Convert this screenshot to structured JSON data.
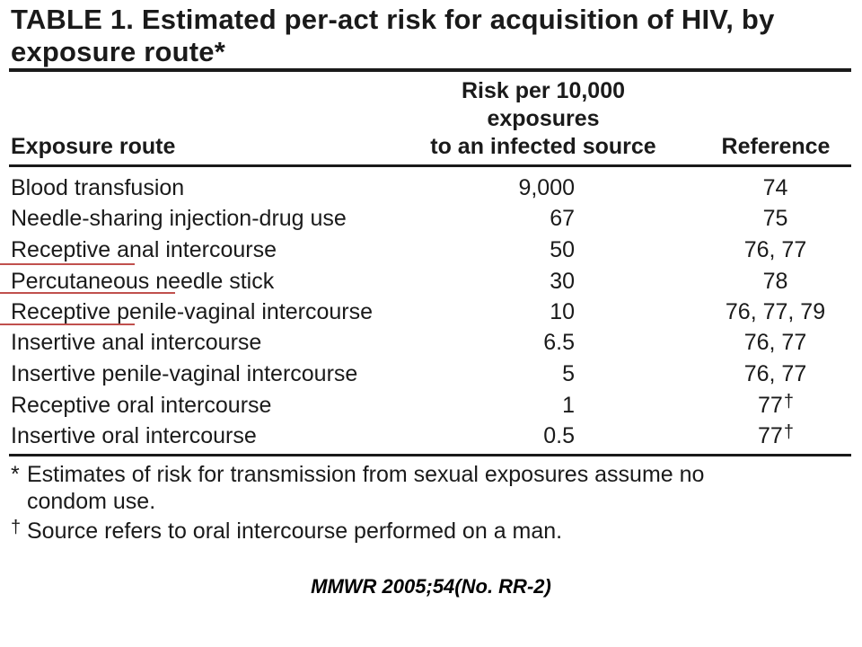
{
  "title": {
    "line1": "TABLE 1. Estimated per-act risk for acquisition of HIV, by",
    "line2": "exposure route*"
  },
  "headers": {
    "route": "Exposure route",
    "risk_line1": "Risk per 10,000",
    "risk_line2": "exposures",
    "risk_line3": "to an infected source",
    "reference": "Reference"
  },
  "rows": [
    {
      "route": "Blood transfusion",
      "risk": "9,000",
      "reference": "74",
      "dagger": ""
    },
    {
      "route": "Needle-sharing injection-drug use",
      "risk": "67",
      "reference": "75",
      "dagger": ""
    },
    {
      "route": "Receptive anal intercourse",
      "risk": "50",
      "reference": "76, 77",
      "dagger": ""
    },
    {
      "route": "Percutaneous needle stick",
      "risk": "30",
      "reference": "78",
      "dagger": ""
    },
    {
      "route": "Receptive penile-vaginal intercourse",
      "risk": "10",
      "reference": "76, 77, 79",
      "dagger": ""
    },
    {
      "route": "Insertive anal intercourse",
      "risk": "6.5",
      "reference": "76, 77",
      "dagger": ""
    },
    {
      "route": "Insertive penile-vaginal intercourse",
      "risk": "5",
      "reference": "76, 77",
      "dagger": ""
    },
    {
      "route": "Receptive oral intercourse",
      "risk": "1",
      "reference": "77",
      "dagger": "†"
    },
    {
      "route": "Insertive oral intercourse",
      "risk": "0.5",
      "reference": "77",
      "dagger": "†"
    }
  ],
  "footnotes": {
    "star_symbol": "*",
    "star_line1": "Estimates of risk for transmission from sexual exposures assume no",
    "star_line2": "condom use.",
    "dagger_symbol": "†",
    "dagger_text": "Source refers to oral intercourse performed on a man."
  },
  "citation": "MMWR 2005;54(No. RR-2)",
  "colors": {
    "text": "#1a1a1a",
    "annotation_underline": "#c0504d"
  }
}
